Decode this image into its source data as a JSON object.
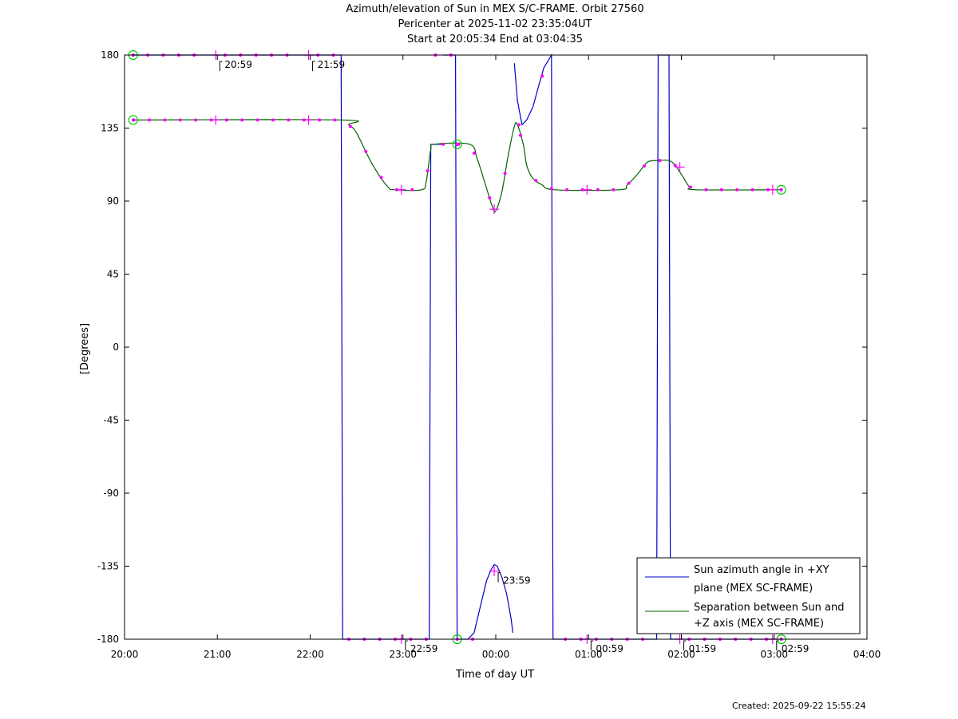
{
  "header": {
    "title": "Azimuth/elevation of Sun in MEX S/C-FRAME.  Orbit 27560",
    "subtitle1": "Pericenter at 2025-11-02 23:35:04UT",
    "subtitle2": "Start at 20:05:34 End at 03:04:35"
  },
  "footer": {
    "created": "Created: 2025-09-22 15:55:24"
  },
  "colors": {
    "azimuth": "#0000cc",
    "separation": "#006400",
    "markers": "#ff00ff",
    "endpoints": "#00cc00"
  },
  "chart_data": {
    "type": "line",
    "xlabel": "Time of day UT",
    "ylabel": "[Degrees]",
    "xlim": [
      "20:00",
      "04:00"
    ],
    "ylim": [
      -180,
      180
    ],
    "x_ticks": [
      "20:00",
      "21:00",
      "22:00",
      "23:00",
      "00:00",
      "01:00",
      "02:00",
      "03:00",
      "04:00"
    ],
    "y_ticks": [
      "180",
      "135",
      "90",
      "45",
      "0",
      "-45",
      "-90",
      "-135",
      "-180"
    ],
    "grid": false,
    "legend_position": "bottom-right",
    "series": [
      {
        "name": "Sun azimuth angle in +XY plane (MEX SC-FRAME)",
        "legend_lines": [
          "Sun azimuth angle in +XY",
          "plane (MEX SC-FRAME)"
        ],
        "segments": [
          [
            [
              "20:05:34",
              180
            ],
            [
              "22:20",
              180
            ],
            [
              "22:21",
              -180
            ],
            [
              "23:17",
              -180
            ],
            [
              "23:18",
              125
            ]
          ],
          [
            [
              "23:18",
              125
            ],
            [
              "23:26",
              125
            ]
          ],
          [
            [
              "23:26",
              180
            ],
            [
              "23:34",
              180
            ],
            [
              "23:35",
              -180
            ],
            [
              "23:42",
              -180
            ],
            [
              "23:46",
              -176
            ],
            [
              "23:50",
              -160
            ],
            [
              "23:54",
              -144
            ],
            [
              "23:57",
              -137
            ],
            [
              "23:59",
              -134
            ],
            [
              "00:01",
              -135
            ],
            [
              "00:04",
              -142
            ],
            [
              "00:07",
              -152
            ],
            [
              "00:10",
              -168
            ],
            [
              "00:11",
              -176
            ]
          ],
          [
            [
              "00:12",
              175
            ],
            [
              "00:14",
              152
            ],
            [
              "00:17",
              137
            ],
            [
              "00:20",
              140
            ],
            [
              "00:24",
              148
            ],
            [
              "00:28",
              162
            ],
            [
              "00:31",
              172
            ],
            [
              "00:36",
              180
            ],
            [
              "00:37",
              -180
            ],
            [
              "01:44",
              -180
            ],
            [
              "01:45",
              180
            ],
            [
              "01:52",
              180
            ],
            [
              "01:53",
              -180
            ],
            [
              "03:04:35",
              -180
            ]
          ]
        ]
      },
      {
        "name": "Separation between Sun and +Z axis (MEX SC-FRAME)",
        "legend_lines": [
          "Separation between Sun and",
          "+Z axis (MEX SC-FRAME)"
        ],
        "points": [
          [
            "20:05:34",
            140
          ],
          [
            "22:20",
            140
          ],
          [
            "22:25",
            137
          ],
          [
            "22:30",
            132
          ],
          [
            "22:40",
            113
          ],
          [
            "22:50",
            99
          ],
          [
            "22:55",
            97
          ],
          [
            "23:12",
            97
          ],
          [
            "23:15",
            102
          ],
          [
            "23:18",
            122
          ],
          [
            "23:20",
            125
          ],
          [
            "23:43",
            125
          ],
          [
            "23:48",
            116
          ],
          [
            "23:54",
            98
          ],
          [
            "23:58",
            86
          ],
          [
            "00:00",
            84
          ],
          [
            "00:04",
            96
          ],
          [
            "00:08",
            118
          ],
          [
            "00:12",
            136
          ],
          [
            "00:14",
            137
          ],
          [
            "00:18",
            124
          ],
          [
            "00:20",
            112
          ],
          [
            "00:24",
            104
          ],
          [
            "00:30",
            100
          ],
          [
            "00:38",
            97
          ],
          [
            "01:20",
            97
          ],
          [
            "01:25",
            100
          ],
          [
            "01:32",
            107
          ],
          [
            "01:38",
            114
          ],
          [
            "01:45",
            115
          ],
          [
            "01:52",
            115
          ],
          [
            "01:56",
            112
          ],
          [
            "02:01",
            105
          ],
          [
            "02:05",
            99
          ],
          [
            "02:10",
            97
          ],
          [
            "03:04:35",
            97
          ]
        ]
      }
    ],
    "endpoint_markers": [
      [
        "20:05:34",
        180
      ],
      [
        "20:05:34",
        140
      ],
      [
        "23:35:04",
        125
      ],
      [
        "23:35:04",
        -180
      ],
      [
        "03:04:35",
        97
      ],
      [
        "03:04:35",
        -180
      ]
    ],
    "hour_markers": [
      {
        "time": "20:59",
        "y": 180,
        "label": "20:59"
      },
      {
        "time": "21:59",
        "y": 180,
        "label": "21:59"
      },
      {
        "time": "22:59",
        "y": -180,
        "label": "22:59"
      },
      {
        "time": "23:59",
        "y": -138,
        "label": "23:59"
      },
      {
        "time": "00:59",
        "y": -180,
        "label": "00:59"
      },
      {
        "time": "01:59",
        "y": -180,
        "label": "01:59"
      },
      {
        "time": "02:59",
        "y": -180,
        "label": "02:59"
      }
    ],
    "sep_cross_markers": [
      [
        "20:59",
        140
      ],
      [
        "21:59",
        140
      ],
      [
        "22:59",
        97
      ],
      [
        "23:59",
        85
      ],
      [
        "00:59",
        97
      ],
      [
        "01:59",
        111
      ],
      [
        "02:59",
        97
      ]
    ]
  }
}
